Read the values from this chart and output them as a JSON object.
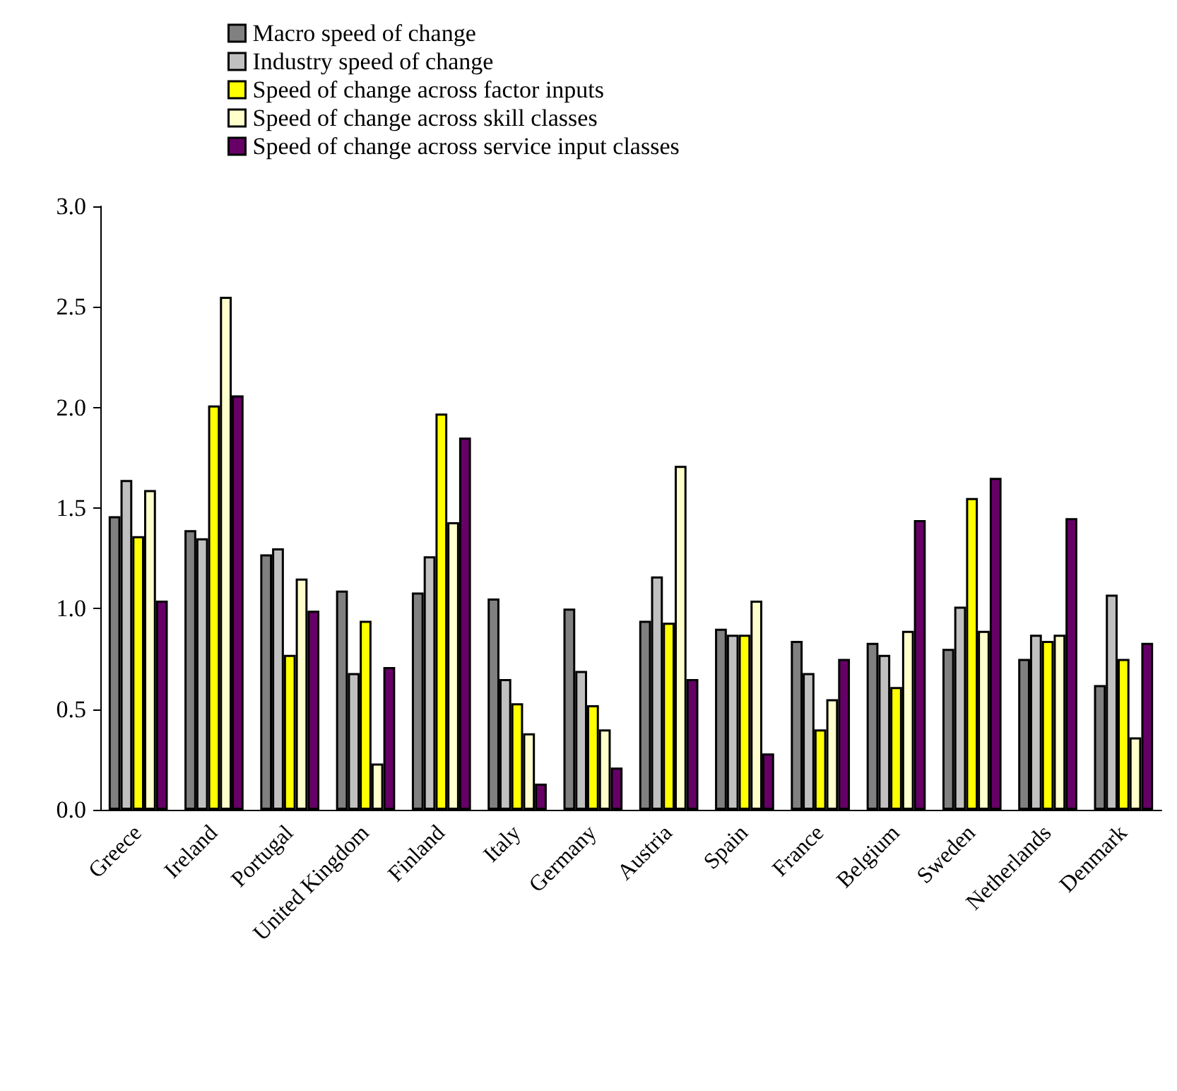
{
  "chart_data": {
    "type": "bar",
    "categories": [
      "Greece",
      "Ireland",
      "Portugal",
      "United Kingdom",
      "Finland",
      "Italy",
      "Germany",
      "Austria",
      "Spain",
      "France",
      "Belgium",
      "Sweden",
      "Netherlands",
      "Denmark"
    ],
    "series": [
      {
        "name": "Macro speed of change",
        "color": "#808080",
        "values": [
          1.46,
          1.39,
          1.27,
          1.09,
          1.08,
          1.05,
          1.0,
          0.94,
          0.9,
          0.84,
          0.83,
          0.8,
          0.75,
          0.62
        ]
      },
      {
        "name": "Industry speed of change",
        "color": "#c0c0c0",
        "values": [
          1.64,
          1.35,
          1.3,
          0.68,
          1.26,
          0.65,
          0.69,
          1.16,
          0.87,
          0.68,
          0.77,
          1.01,
          0.87,
          1.07
        ]
      },
      {
        "name": "Speed of change across factor inputs",
        "color": "#ffff00",
        "values": [
          1.36,
          2.01,
          0.77,
          0.94,
          1.97,
          0.53,
          0.52,
          0.93,
          0.87,
          0.4,
          0.61,
          1.55,
          0.84,
          0.75
        ]
      },
      {
        "name": "Speed of change across skill classes",
        "color": "#ffffcc",
        "values": [
          1.59,
          2.55,
          1.15,
          0.23,
          1.43,
          0.38,
          0.4,
          1.71,
          1.04,
          0.55,
          0.89,
          0.89,
          0.87,
          0.36
        ]
      },
      {
        "name": "Speed of change across service input classes",
        "color": "#660066",
        "values": [
          1.04,
          2.06,
          0.99,
          0.71,
          1.85,
          0.13,
          0.21,
          0.65,
          0.28,
          0.75,
          1.44,
          1.65,
          1.45,
          0.83
        ]
      }
    ],
    "ylim": [
      0,
      3
    ],
    "yticks": [
      {
        "value": 0,
        "label": "0.0"
      },
      {
        "value": 0.5,
        "label": "0.5"
      },
      {
        "value": 1,
        "label": "1.0"
      },
      {
        "value": 1.5,
        "label": "1.5"
      },
      {
        "value": 2,
        "label": "2.0"
      },
      {
        "value": 2.5,
        "label": "2.5"
      },
      {
        "value": 3,
        "label": "3.0"
      }
    ],
    "grid": false,
    "legend": "top"
  }
}
